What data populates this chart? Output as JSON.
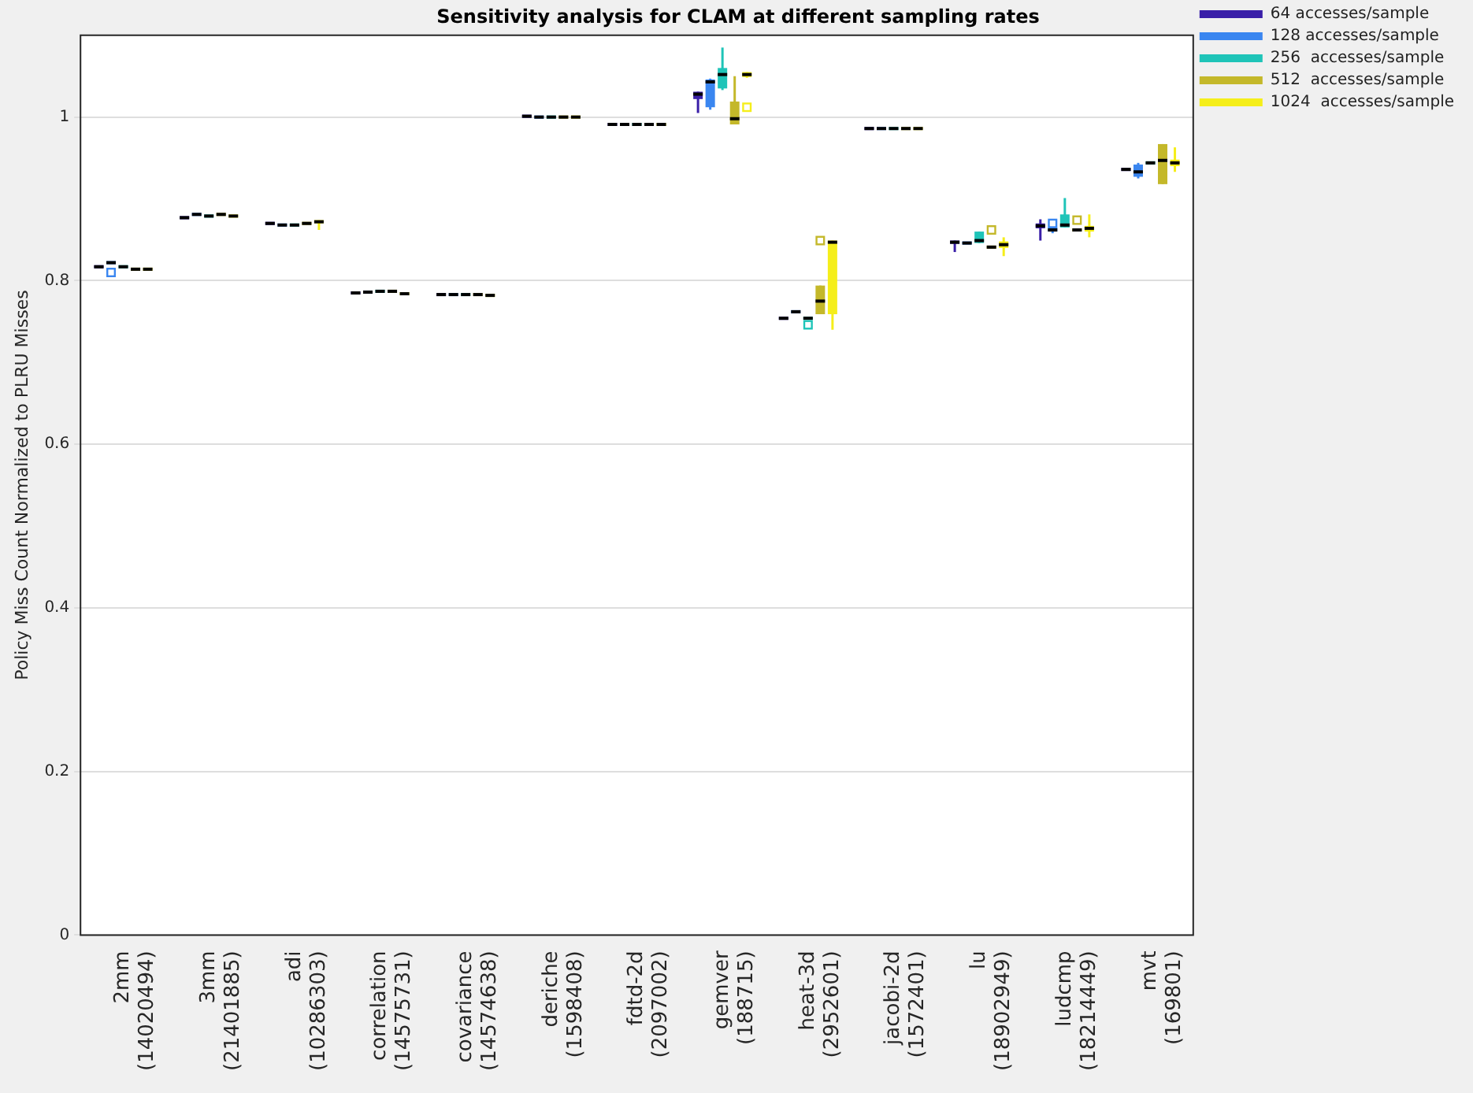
{
  "chart_data": {
    "type": "box",
    "title": "Sensitivity analysis for CLAM at different sampling rates",
    "ylabel": "Policy Miss Count Normalized to PLRU Misses",
    "categories": [
      "2mm\n(14020494)",
      "3mm\n(21401885)",
      "adi\n(10286303)",
      "correlation\n(14575731)",
      "covariance\n(14574638)",
      "deriche\n(1598408)",
      "fdtd-2d\n(2097002)",
      "gemver\n(188715)",
      "heat-3d\n(2952601)",
      "jacobi-2d\n(1572401)",
      "lu\n(18902949)",
      "ludcmp\n(18214449)",
      "mvt\n(169801)"
    ],
    "ylim": [
      0,
      1.1
    ],
    "yticks": [
      0,
      0.2,
      0.4,
      0.6,
      0.8,
      1
    ],
    "grid": "y",
    "legend": "top right",
    "series": [
      {
        "name": "64 accesses/sample",
        "color": "#3a1fa8",
        "boxes": [
          {
            "low": 0.817,
            "q1": 0.817,
            "median": 0.817,
            "q3": 0.817,
            "high": 0.817
          },
          {
            "low": 0.877,
            "q1": 0.877,
            "median": 0.877,
            "q3": 0.877,
            "high": 0.877
          },
          {
            "low": 0.87,
            "q1": 0.87,
            "median": 0.87,
            "q3": 0.87,
            "high": 0.87
          },
          {
            "low": 0.785,
            "q1": 0.785,
            "median": 0.785,
            "q3": 0.785,
            "high": 0.785
          },
          {
            "low": 0.783,
            "q1": 0.783,
            "median": 0.783,
            "q3": 0.783,
            "high": 0.783
          },
          {
            "low": 1.001,
            "q1": 1.001,
            "median": 1.001,
            "q3": 1.001,
            "high": 1.001
          },
          {
            "low": 0.991,
            "q1": 0.991,
            "median": 0.991,
            "q3": 0.991,
            "high": 0.991
          },
          {
            "low": 1.005,
            "q1": 1.022,
            "median": 1.028,
            "q3": 1.031,
            "high": 1.031
          },
          {
            "low": 0.754,
            "q1": 0.754,
            "median": 0.754,
            "q3": 0.754,
            "high": 0.754
          },
          {
            "low": 0.986,
            "q1": 0.986,
            "median": 0.986,
            "q3": 0.986,
            "high": 0.986
          },
          {
            "low": 0.835,
            "q1": 0.845,
            "median": 0.847,
            "q3": 0.849,
            "high": 0.849
          },
          {
            "low": 0.849,
            "q1": 0.864,
            "median": 0.867,
            "q3": 0.87,
            "high": 0.875
          },
          {
            "low": 0.936,
            "q1": 0.936,
            "median": 0.936,
            "q3": 0.936,
            "high": 0.936
          }
        ]
      },
      {
        "name": "128 accesses/sample",
        "color": "#3a86f0",
        "boxes": [
          {
            "low": 0.822,
            "q1": 0.822,
            "median": 0.822,
            "q3": 0.822,
            "high": 0.822,
            "outliers": [
              0.81
            ]
          },
          {
            "low": 0.881,
            "q1": 0.881,
            "median": 0.881,
            "q3": 0.881,
            "high": 0.881
          },
          {
            "low": 0.868,
            "q1": 0.868,
            "median": 0.868,
            "q3": 0.868,
            "high": 0.868
          },
          {
            "low": 0.786,
            "q1": 0.786,
            "median": 0.786,
            "q3": 0.786,
            "high": 0.786
          },
          {
            "low": 0.783,
            "q1": 0.783,
            "median": 0.783,
            "q3": 0.783,
            "high": 0.783
          },
          {
            "low": 1.0,
            "q1": 1.0,
            "median": 1.0,
            "q3": 1.0,
            "high": 1.0
          },
          {
            "low": 0.991,
            "q1": 0.991,
            "median": 0.991,
            "q3": 0.991,
            "high": 0.991
          },
          {
            "low": 1.009,
            "q1": 1.012,
            "median": 1.043,
            "q3": 1.046,
            "high": 1.047
          },
          {
            "low": 0.762,
            "q1": 0.762,
            "median": 0.762,
            "q3": 0.762,
            "high": 0.762
          },
          {
            "low": 0.986,
            "q1": 0.986,
            "median": 0.986,
            "q3": 0.986,
            "high": 0.986
          },
          {
            "low": 0.846,
            "q1": 0.846,
            "median": 0.846,
            "q3": 0.846,
            "high": 0.846
          },
          {
            "low": 0.858,
            "q1": 0.86,
            "median": 0.862,
            "q3": 0.865,
            "high": 0.866,
            "outliers": [
              0.87
            ]
          },
          {
            "low": 0.925,
            "q1": 0.927,
            "median": 0.933,
            "q3": 0.942,
            "high": 0.944
          }
        ]
      },
      {
        "name": "256  accesses/sample",
        "color": "#1fc4b8",
        "boxes": [
          {
            "low": 0.817,
            "q1": 0.817,
            "median": 0.817,
            "q3": 0.817,
            "high": 0.817
          },
          {
            "low": 0.879,
            "q1": 0.879,
            "median": 0.879,
            "q3": 0.879,
            "high": 0.879
          },
          {
            "low": 0.868,
            "q1": 0.868,
            "median": 0.868,
            "q3": 0.868,
            "high": 0.868
          },
          {
            "low": 0.787,
            "q1": 0.787,
            "median": 0.787,
            "q3": 0.787,
            "high": 0.787
          },
          {
            "low": 0.783,
            "q1": 0.783,
            "median": 0.783,
            "q3": 0.783,
            "high": 0.783
          },
          {
            "low": 1.0,
            "q1": 1.0,
            "median": 1.0,
            "q3": 1.0,
            "high": 1.0
          },
          {
            "low": 0.991,
            "q1": 0.991,
            "median": 0.991,
            "q3": 0.991,
            "high": 0.991
          },
          {
            "low": 1.033,
            "q1": 1.035,
            "median": 1.052,
            "q3": 1.06,
            "high": 1.085
          },
          {
            "low": 0.754,
            "q1": 0.754,
            "median": 0.754,
            "q3": 0.754,
            "high": 0.754,
            "outliers": [
              0.746
            ]
          },
          {
            "low": 0.986,
            "q1": 0.986,
            "median": 0.986,
            "q3": 0.986,
            "high": 0.986
          },
          {
            "low": 0.846,
            "q1": 0.846,
            "median": 0.849,
            "q3": 0.86,
            "high": 0.86
          },
          {
            "low": 0.865,
            "q1": 0.865,
            "median": 0.868,
            "q3": 0.881,
            "high": 0.901
          },
          {
            "low": 0.944,
            "q1": 0.944,
            "median": 0.944,
            "q3": 0.944,
            "high": 0.944
          }
        ]
      },
      {
        "name": "512  accesses/sample",
        "color": "#c4b82a",
        "boxes": [
          {
            "low": 0.814,
            "q1": 0.814,
            "median": 0.814,
            "q3": 0.814,
            "high": 0.814
          },
          {
            "low": 0.881,
            "q1": 0.881,
            "median": 0.881,
            "q3": 0.881,
            "high": 0.881
          },
          {
            "low": 0.87,
            "q1": 0.87,
            "median": 0.87,
            "q3": 0.87,
            "high": 0.87
          },
          {
            "low": 0.787,
            "q1": 0.787,
            "median": 0.787,
            "q3": 0.787,
            "high": 0.787
          },
          {
            "low": 0.783,
            "q1": 0.783,
            "median": 0.783,
            "q3": 0.783,
            "high": 0.783
          },
          {
            "low": 1.0,
            "q1": 1.0,
            "median": 1.0,
            "q3": 1.0,
            "high": 1.0
          },
          {
            "low": 0.991,
            "q1": 0.991,
            "median": 0.991,
            "q3": 0.991,
            "high": 0.991
          },
          {
            "low": 0.991,
            "q1": 0.991,
            "median": 0.998,
            "q3": 1.019,
            "high": 1.05
          },
          {
            "low": 0.759,
            "q1": 0.759,
            "median": 0.775,
            "q3": 0.794,
            "high": 0.794,
            "outliers": [
              0.849
            ]
          },
          {
            "low": 0.986,
            "q1": 0.986,
            "median": 0.986,
            "q3": 0.986,
            "high": 0.986
          },
          {
            "low": 0.841,
            "q1": 0.841,
            "median": 0.841,
            "q3": 0.841,
            "high": 0.841,
            "outliers": [
              0.862
            ]
          },
          {
            "low": 0.862,
            "q1": 0.862,
            "median": 0.862,
            "q3": 0.862,
            "high": 0.862,
            "outliers": [
              0.874
            ]
          },
          {
            "low": 0.918,
            "q1": 0.918,
            "median": 0.947,
            "q3": 0.967,
            "high": 0.967
          }
        ]
      },
      {
        "name": "1024  accesses/sample",
        "color": "#f5ee1a",
        "boxes": [
          {
            "low": 0.814,
            "q1": 0.814,
            "median": 0.814,
            "q3": 0.814,
            "high": 0.814
          },
          {
            "low": 0.879,
            "q1": 0.879,
            "median": 0.879,
            "q3": 0.879,
            "high": 0.879
          },
          {
            "low": 0.862,
            "q1": 0.87,
            "median": 0.872,
            "q3": 0.874,
            "high": 0.874
          },
          {
            "low": 0.784,
            "q1": 0.784,
            "median": 0.784,
            "q3": 0.784,
            "high": 0.784
          },
          {
            "low": 0.782,
            "q1": 0.782,
            "median": 0.782,
            "q3": 0.782,
            "high": 0.782
          },
          {
            "low": 1.0,
            "q1": 1.0,
            "median": 1.0,
            "q3": 1.0,
            "high": 1.0
          },
          {
            "low": 0.991,
            "q1": 0.991,
            "median": 0.991,
            "q3": 0.991,
            "high": 0.991
          },
          {
            "low": 1.048,
            "q1": 1.049,
            "median": 1.052,
            "q3": 1.055,
            "high": 1.055,
            "outliers": [
              1.012
            ]
          },
          {
            "low": 0.74,
            "q1": 0.759,
            "median": 0.847,
            "q3": 0.849,
            "high": 0.849
          },
          {
            "low": 0.986,
            "q1": 0.986,
            "median": 0.986,
            "q3": 0.986,
            "high": 0.986
          },
          {
            "low": 0.83,
            "q1": 0.84,
            "median": 0.844,
            "q3": 0.848,
            "high": 0.853
          },
          {
            "low": 0.853,
            "q1": 0.86,
            "median": 0.864,
            "q3": 0.867,
            "high": 0.881
          },
          {
            "low": 0.933,
            "q1": 0.94,
            "median": 0.944,
            "q3": 0.948,
            "high": 0.963
          }
        ]
      }
    ]
  }
}
